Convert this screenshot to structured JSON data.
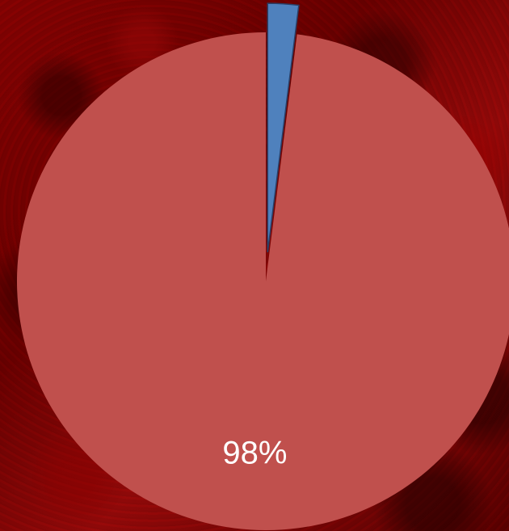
{
  "chart_data": {
    "type": "pie",
    "slices": [
      {
        "value": 98,
        "label": "98%",
        "color": "#c0504d"
      },
      {
        "value": 2,
        "label": "",
        "color": "#4f81bd",
        "exploded": true
      }
    ],
    "start_angle_deg": 0,
    "direction": "counterclockwise"
  },
  "colors": {
    "background": "#7a0000",
    "label_text": "#ffffff"
  }
}
